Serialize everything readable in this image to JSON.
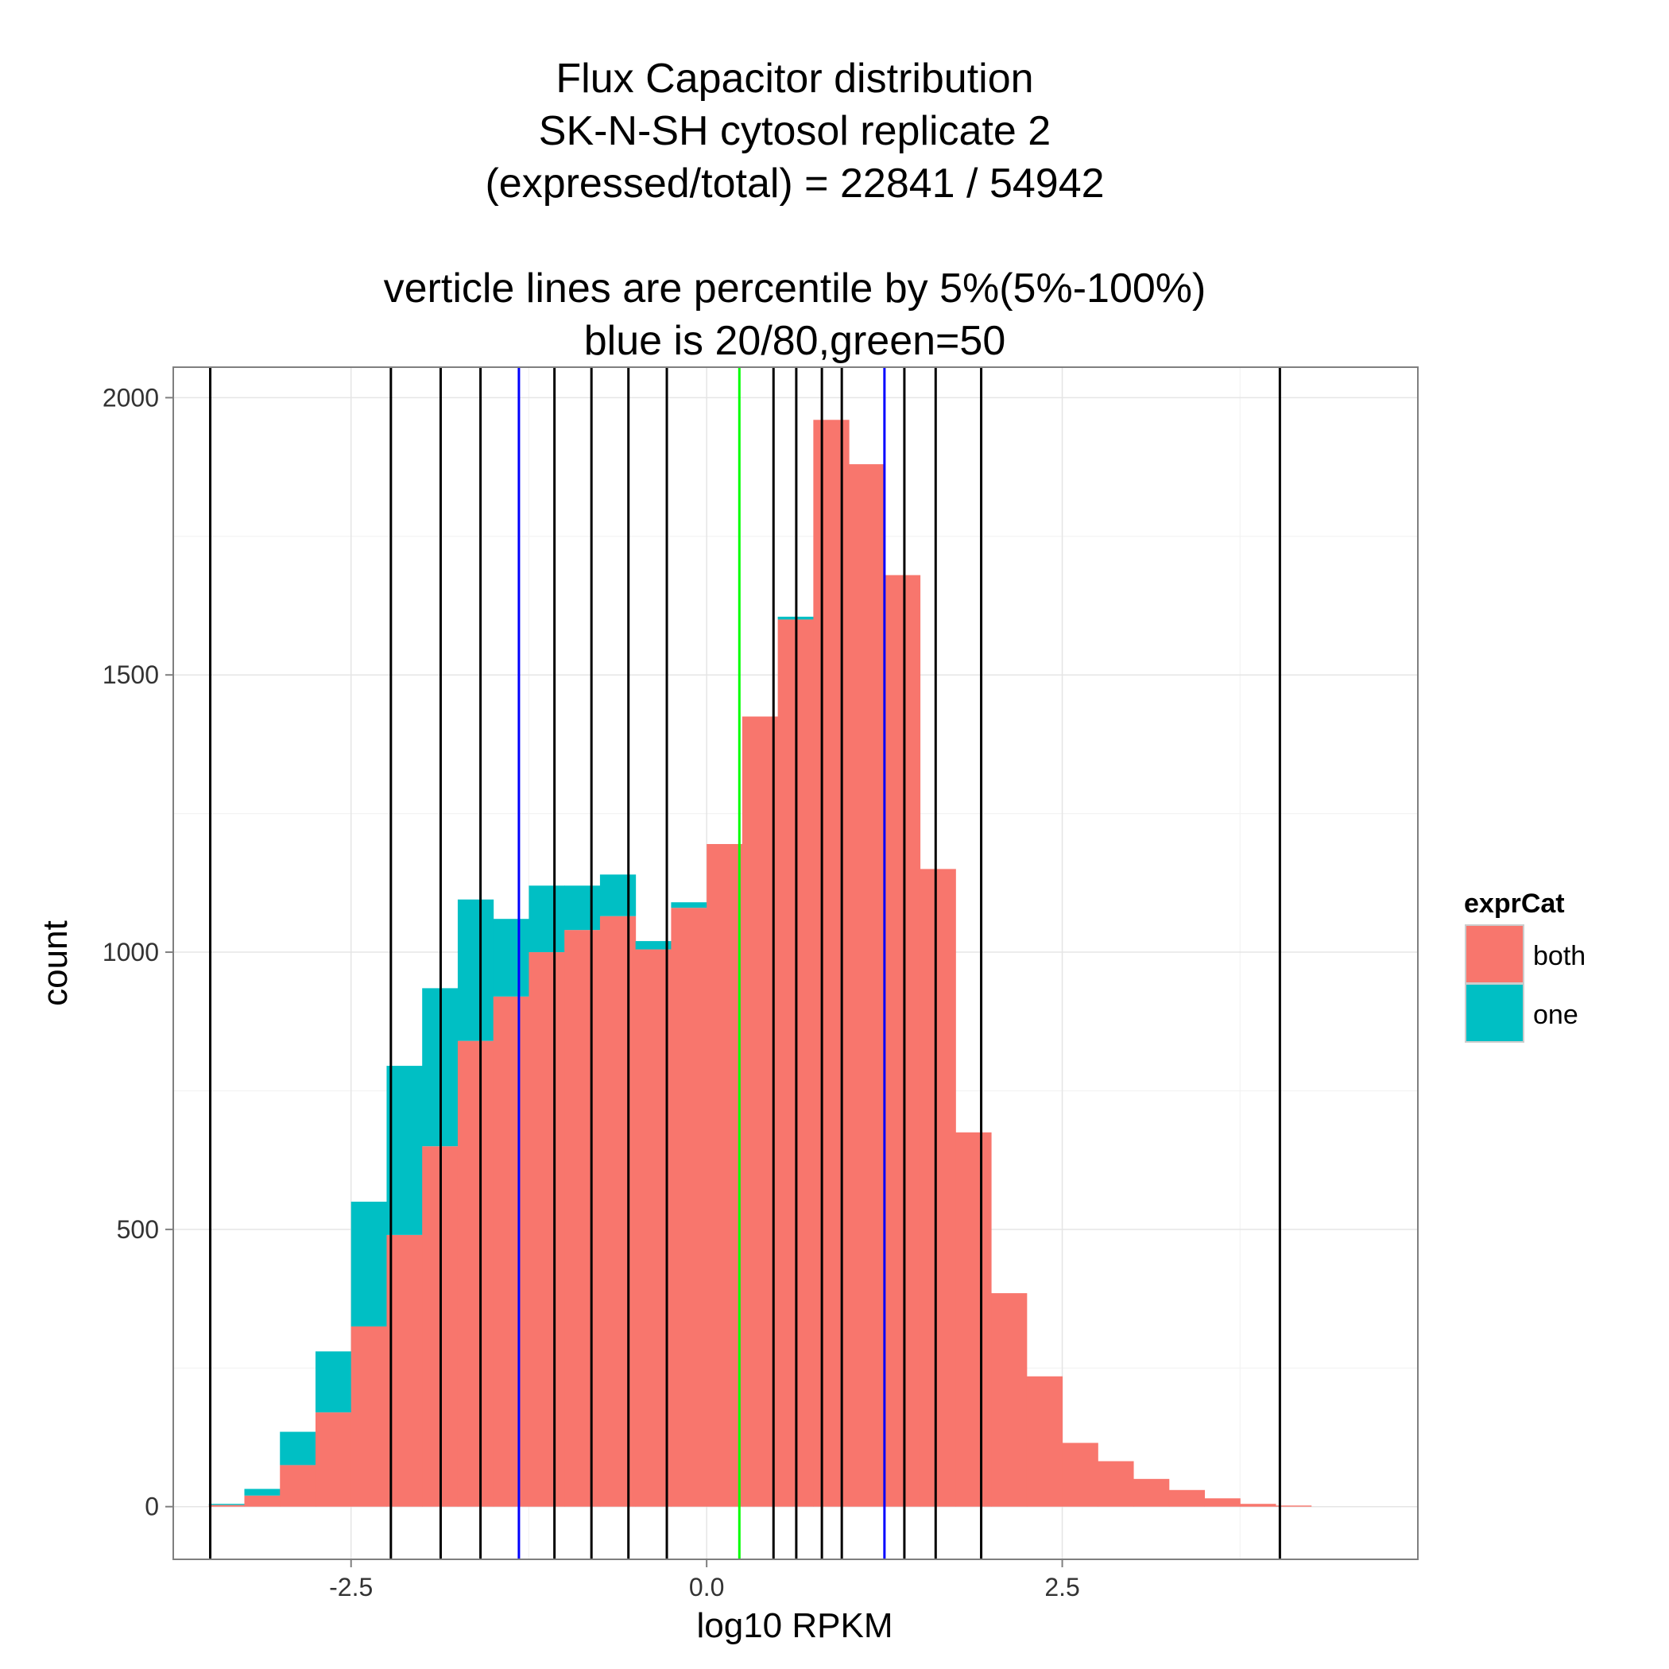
{
  "chart_data": {
    "type": "bar",
    "subtype": "stacked-histogram",
    "title_lines": [
      "Flux Capacitor distribution",
      "SK-N-SH cytosol replicate 2",
      "(expressed/total) = 22841 / 54942",
      "",
      "verticle lines are percentile by 5%(5%-100%)",
      "blue is 20/80,green=50"
    ],
    "xlabel": "log10 RPKM",
    "ylabel": "count",
    "xlim": [
      -3.75,
      5.0
    ],
    "ylim": [
      -95,
      2055
    ],
    "x_ticks": [
      -2.5,
      0.0,
      2.5
    ],
    "x_tick_labels": [
      "-2.5",
      "0.0",
      "2.5"
    ],
    "y_ticks": [
      0,
      500,
      1000,
      1500,
      2000
    ],
    "y_tick_labels": [
      "0",
      "500",
      "1000",
      "1500",
      "2000"
    ],
    "grid": true,
    "bin_width": 0.25,
    "bin_starts": [
      -3.5,
      -3.25,
      -3.0,
      -2.75,
      -2.5,
      -2.25,
      -2.0,
      -1.75,
      -1.5,
      -1.25,
      -1.0,
      -0.75,
      -0.5,
      -0.25,
      0.0,
      0.25,
      0.5,
      0.75,
      1.0,
      1.25,
      1.5,
      1.75,
      2.0,
      2.25,
      2.5,
      2.75,
      3.0,
      3.25,
      3.5,
      3.75,
      4.0
    ],
    "series": [
      {
        "name": "both",
        "color": "#F8766D",
        "values": [
          3,
          20,
          75,
          170,
          325,
          490,
          650,
          840,
          920,
          1000,
          1040,
          1065,
          1005,
          1080,
          1195,
          1425,
          1600,
          1960,
          1880,
          1680,
          1150,
          675,
          385,
          235,
          115,
          82,
          50,
          30,
          15,
          5,
          2
        ]
      },
      {
        "name": "one",
        "color": "#00BFC4",
        "values": [
          2,
          12,
          60,
          110,
          225,
          305,
          285,
          255,
          140,
          120,
          80,
          75,
          15,
          10,
          0,
          0,
          5,
          0,
          0,
          0,
          0,
          0,
          0,
          0,
          0,
          0,
          0,
          0,
          0,
          0,
          0
        ]
      }
    ],
    "percentile_lines": {
      "black_color": "#000000",
      "blue_color": "#0000FF",
      "green_color": "#00FF00",
      "black_x": [
        -3.49,
        -2.22,
        -1.87,
        -1.59,
        -1.07,
        -0.81,
        -0.55,
        -0.28,
        0.47,
        0.63,
        0.81,
        0.95,
        1.39,
        1.61,
        1.93,
        4.03
      ],
      "blue_x": [
        -1.32,
        1.25
      ],
      "green_x": [
        0.23
      ]
    },
    "legend": {
      "title": "exprCat",
      "position": "right",
      "items": [
        {
          "label": "both",
          "color": "#F8766D"
        },
        {
          "label": "one",
          "color": "#00BFC4"
        }
      ]
    }
  }
}
